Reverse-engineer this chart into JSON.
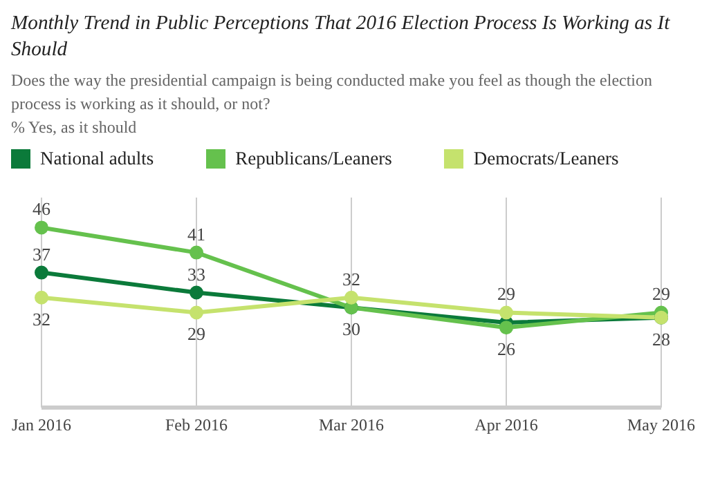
{
  "chart_data": {
    "type": "line",
    "title": "Monthly Trend in Public Perceptions That 2016 Election Process Is Working as It Should",
    "subtitle": "Does the way the presidential campaign is being conducted make you feel as though the election process is working as it should, or not?",
    "ylabel": "% Yes, as it should",
    "categories": [
      "Jan 2016",
      "Feb 2016",
      "Mar 2016",
      "Apr 2016",
      "May 2016"
    ],
    "series": [
      {
        "name": "National adults",
        "color": "#0b7a3a",
        "values": [
          37,
          33,
          30,
          27,
          28
        ],
        "value_labels": [
          "37",
          "33",
          null,
          null,
          null
        ]
      },
      {
        "name": "Republicans/Leaners",
        "color": "#65c14d",
        "values": [
          46,
          41,
          30,
          26,
          29
        ],
        "value_labels": [
          "46",
          "41",
          "30",
          "26",
          "29"
        ]
      },
      {
        "name": "Democrats/Leaners",
        "color": "#c5e26d",
        "values": [
          32,
          29,
          32,
          29,
          28
        ],
        "value_labels": [
          "32",
          "29",
          "32",
          "29",
          "28"
        ]
      }
    ],
    "ylim": [
      10,
      52
    ],
    "tick_labels": "x",
    "grid": "x",
    "legend": "top left",
    "marker": "circle",
    "line_style": "solid"
  }
}
